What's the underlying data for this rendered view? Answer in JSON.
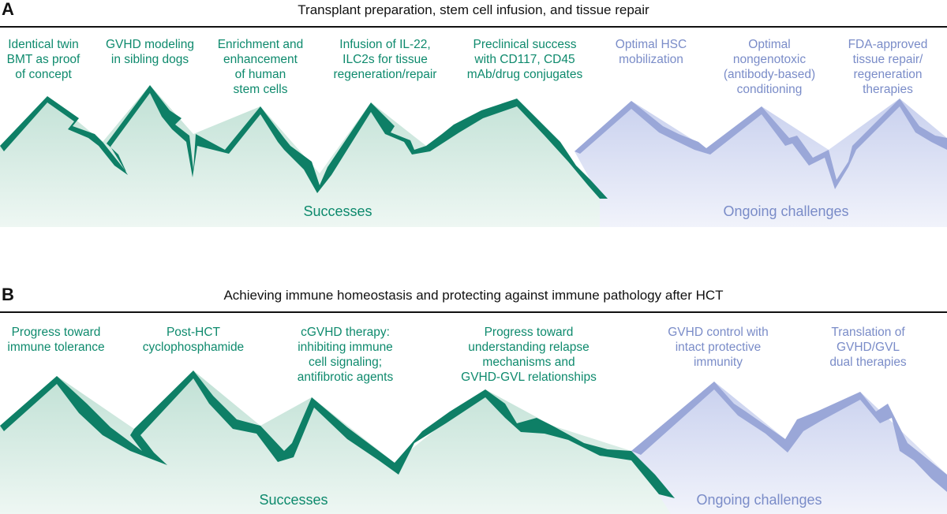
{
  "panel_a": {
    "letter": "A",
    "title": "Transplant preparation, stem cell infusion, and tissue repair",
    "successes": [
      "Identical twin\nBMT as proof\nof concept",
      "GVHD modeling\nin sibling dogs",
      "Enrichment and\nenhancement\nof human\nstem cells",
      "Infusion of IL-22,\nILC2s for tissue\nregeneration/repair",
      "Preclinical success\nwith CD117, CD45\nmAb/drug conjugates"
    ],
    "challenges": [
      "Optimal HSC\nmobilization",
      "Optimal\nnongenotoxic\n(antibody-based)\nconditioning",
      "FDA-approved\ntissue repair/\nregeneration\ntherapies"
    ],
    "successes_label": "Successes",
    "challenges_label": "Ongoing challenges"
  },
  "panel_b": {
    "letter": "B",
    "title": "Achieving immune homeostasis and protecting against immune pathology after HCT",
    "successes": [
      "Progress toward\nimmune tolerance",
      "Post-HCT\ncyclophosphamide",
      "cGVHD therapy:\ninhibiting immune\ncell signaling;\nantifibrotic agents",
      "Progress toward\nunderstanding relapse\nmechanisms and\nGVHD-GVL relationships"
    ],
    "challenges": [
      "GVHD control with\nintact protective\nimmunity",
      "Translation of\nGVHD/GVL\ndual therapies"
    ],
    "successes_label": "Successes",
    "challenges_label": "Ongoing challenges"
  },
  "colors": {
    "success_text": "#0e8a6d",
    "success_ridge": "#0e7f66",
    "challenge_text": "#7a8cc8",
    "challenge_ridge": "#9aa7d8"
  }
}
